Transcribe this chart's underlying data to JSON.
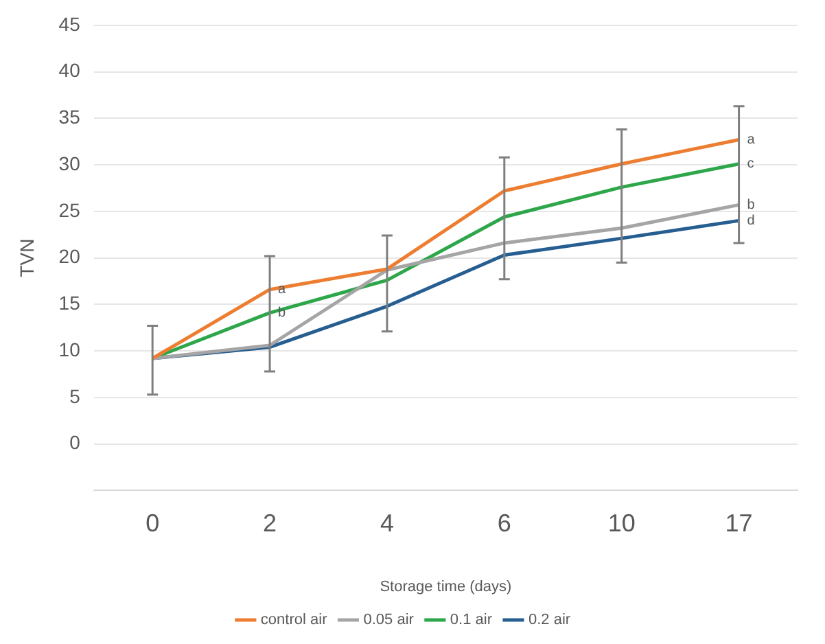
{
  "chart_data": {
    "type": "line",
    "xlabel": "Storage time (days)",
    "ylabel": "TVN",
    "categories": [
      "0",
      "2",
      "4",
      "6",
      "10",
      "17"
    ],
    "ylim": [
      -5,
      45
    ],
    "yticks": [
      0,
      5,
      10,
      15,
      20,
      25,
      30,
      35,
      40,
      45
    ],
    "grid": "y",
    "legend": "bottom",
    "marker": "none",
    "line_style": "solid",
    "series": [
      {
        "name": "control air",
        "color": "#ed7d31",
        "values": [
          9.2,
          16.6,
          18.8,
          27.2,
          30.1,
          32.7
        ],
        "errors": [
          [
            5.3,
            12.7
          ],
          [
            7.8,
            20.2
          ],
          [
            12.1,
            22.4
          ],
          [
            17.7,
            30.8
          ],
          [
            19.5,
            33.8
          ],
          [
            21.6,
            36.3
          ]
        ]
      },
      {
        "name": "0.05 air",
        "color": "#a5a5a5",
        "values": [
          9.2,
          10.6,
          18.7,
          21.6,
          23.2,
          25.7
        ]
      },
      {
        "name": "0.1 air",
        "color": "#2ea64a",
        "values": [
          9.2,
          14.1,
          17.6,
          24.4,
          27.6,
          30.1
        ]
      },
      {
        "name": "0.2 air",
        "color": "#265e91",
        "values": [
          9.2,
          10.4,
          14.8,
          20.3,
          22.1,
          24.0
        ]
      }
    ],
    "annotations": [
      {
        "text": "a",
        "x": "2",
        "y": 16.6
      },
      {
        "text": "b",
        "x": "2",
        "y": 14.1
      },
      {
        "text": "a",
        "x": "17",
        "y": 32.7
      },
      {
        "text": "c",
        "x": "17",
        "y": 30.1
      },
      {
        "text": "b",
        "x": "17",
        "y": 25.7
      },
      {
        "text": "d",
        "x": "17",
        "y": 24.0
      }
    ]
  }
}
